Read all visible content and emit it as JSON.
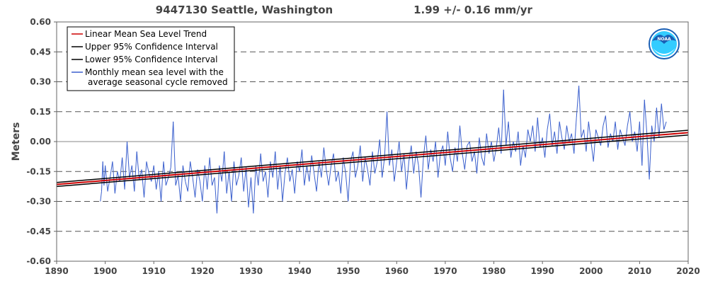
{
  "header": {
    "station": "9447130 Seattle, Washington",
    "trend": "1.99 +/-  0.16 mm/yr"
  },
  "logo_text": "NOAA",
  "colors": {
    "trend": "#cc0000",
    "ci": "#000000",
    "monthly": "#3a5fcd",
    "grid": "#555555",
    "zero": "#888888",
    "background": "#ffffff",
    "noaa_blue": "#1a5fb4",
    "noaa_sky": "#33ccff"
  },
  "chart_data": {
    "type": "line",
    "title": "9447130 Seattle, Washington",
    "subtitle": "1.99 +/-  0.16 mm/yr",
    "xlabel": "",
    "ylabel": "Meters",
    "xlim": [
      1890,
      2020
    ],
    "ylim": [
      -0.6,
      0.6
    ],
    "x_ticks": [
      1890,
      1900,
      1910,
      1920,
      1930,
      1940,
      1950,
      1960,
      1970,
      1980,
      1990,
      2000,
      2010,
      2020
    ],
    "y_ticks": [
      -0.6,
      -0.45,
      -0.3,
      -0.15,
      0.0,
      0.15,
      0.3,
      0.45,
      0.6
    ],
    "y_tick_labels": [
      "-0.60",
      "-0.45",
      "-0.30",
      "-0.15",
      "0.00",
      "0.15",
      "0.30",
      "0.45",
      "0.60"
    ],
    "grid": "horizontal dashed",
    "legend_position": "top-left",
    "legend": [
      {
        "label": "Linear Mean Sea Level Trend",
        "color": "#cc0000"
      },
      {
        "label": "Upper 95% Confidence Interval",
        "color": "#000000"
      },
      {
        "label": "Lower 95% Confidence Interval",
        "color": "#000000"
      },
      {
        "label": "Monthly mean sea level with the average seasonal cycle removed",
        "color": "#3a5fcd"
      }
    ],
    "trend_lines": [
      {
        "name": "Linear Mean Sea Level Trend",
        "x": [
          1890,
          2020
        ],
        "y": [
          -0.215,
          0.045
        ]
      },
      {
        "name": "Upper 95% Confidence Interval",
        "x": [
          1890,
          2020
        ],
        "y": [
          -0.205,
          0.057
        ]
      },
      {
        "name": "Lower 95% Confidence Interval",
        "x": [
          1890,
          2020
        ],
        "y": [
          -0.225,
          0.033
        ]
      }
    ],
    "monthly_series": {
      "name": "Monthly mean sea level with the average seasonal cycle removed",
      "x": [
        1899.0,
        1899.25,
        1899.5,
        1899.75,
        1900.0,
        1900.5,
        1901.0,
        1901.5,
        1902.0,
        1902.5,
        1903.0,
        1903.5,
        1904.0,
        1904.5,
        1905.0,
        1905.5,
        1906.0,
        1906.5,
        1907.0,
        1907.5,
        1908.0,
        1908.5,
        1909.0,
        1909.5,
        1910.0,
        1910.5,
        1911.0,
        1911.5,
        1912.0,
        1912.5,
        1913.0,
        1913.5,
        1914.0,
        1914.5,
        1915.0,
        1915.5,
        1916.0,
        1916.5,
        1917.0,
        1917.5,
        1918.0,
        1918.5,
        1919.0,
        1919.5,
        1920.0,
        1920.5,
        1921.0,
        1921.5,
        1922.0,
        1922.5,
        1923.0,
        1923.5,
        1924.0,
        1924.5,
        1925.0,
        1925.5,
        1926.0,
        1926.5,
        1927.0,
        1927.5,
        1928.0,
        1928.5,
        1929.0,
        1929.5,
        1930.0,
        1930.5,
        1931.0,
        1931.5,
        1932.0,
        1932.5,
        1933.0,
        1933.5,
        1934.0,
        1934.5,
        1935.0,
        1935.5,
        1936.0,
        1936.5,
        1937.0,
        1937.5,
        1938.0,
        1938.5,
        1939.0,
        1939.5,
        1940.0,
        1940.5,
        1941.0,
        1941.5,
        1942.0,
        1942.5,
        1943.0,
        1943.5,
        1944.0,
        1944.5,
        1945.0,
        1945.5,
        1946.0,
        1946.5,
        1947.0,
        1947.5,
        1948.0,
        1948.5,
        1949.0,
        1949.5,
        1950.0,
        1950.5,
        1951.0,
        1951.5,
        1952.0,
        1952.5,
        1953.0,
        1953.5,
        1954.0,
        1954.5,
        1955.0,
        1955.5,
        1956.0,
        1956.5,
        1957.0,
        1957.5,
        1958.0,
        1958.5,
        1959.0,
        1959.5,
        1960.0,
        1960.5,
        1961.0,
        1961.5,
        1962.0,
        1962.5,
        1963.0,
        1963.5,
        1964.0,
        1964.5,
        1965.0,
        1965.5,
        1966.0,
        1966.5,
        1967.0,
        1967.5,
        1968.0,
        1968.5,
        1969.0,
        1969.5,
        1970.0,
        1970.5,
        1971.0,
        1971.5,
        1972.0,
        1972.5,
        1973.0,
        1973.5,
        1974.0,
        1974.5,
        1975.0,
        1975.5,
        1976.0,
        1976.5,
        1977.0,
        1977.5,
        1978.0,
        1978.5,
        1979.0,
        1979.5,
        1980.0,
        1980.5,
        1981.0,
        1981.5,
        1982.0,
        1982.5,
        1983.0,
        1983.5,
        1984.0,
        1984.5,
        1985.0,
        1985.5,
        1986.0,
        1986.5,
        1987.0,
        1987.5,
        1988.0,
        1988.5,
        1989.0,
        1989.5,
        1990.0,
        1990.5,
        1991.0,
        1991.5,
        1992.0,
        1992.5,
        1993.0,
        1993.5,
        1994.0,
        1994.5,
        1995.0,
        1995.5,
        1996.0,
        1996.5,
        1997.0,
        1997.5,
        1998.0,
        1998.5,
        1999.0,
        1999.5,
        2000.0,
        2000.5,
        2001.0,
        2001.5,
        2002.0,
        2002.5,
        2003.0,
        2003.5,
        2004.0,
        2004.5,
        2005.0,
        2005.5,
        2006.0,
        2006.5,
        2007.0,
        2007.5,
        2008.0,
        2008.5,
        2009.0,
        2009.5,
        2010.0,
        2010.5,
        2011.0,
        2011.5,
        2012.0,
        2012.5,
        2013.0,
        2013.5,
        2014.0,
        2014.5,
        2015.0,
        2015.5
      ],
      "y": [
        -0.3,
        -0.25,
        -0.1,
        -0.22,
        -0.12,
        -0.25,
        -0.18,
        -0.1,
        -0.26,
        -0.15,
        -0.2,
        -0.08,
        -0.24,
        0.0,
        -0.18,
        -0.12,
        -0.25,
        -0.05,
        -0.19,
        -0.14,
        -0.28,
        -0.1,
        -0.16,
        -0.2,
        -0.12,
        -0.24,
        -0.15,
        -0.3,
        -0.1,
        -0.22,
        -0.18,
        -0.13,
        0.1,
        -0.22,
        -0.17,
        -0.3,
        -0.12,
        -0.2,
        -0.25,
        -0.1,
        -0.18,
        -0.28,
        -0.14,
        -0.2,
        -0.3,
        -0.12,
        -0.24,
        -0.08,
        -0.22,
        -0.18,
        -0.36,
        -0.12,
        -0.2,
        -0.05,
        -0.26,
        -0.15,
        -0.3,
        -0.1,
        -0.22,
        -0.17,
        -0.08,
        -0.25,
        -0.13,
        -0.33,
        -0.18,
        -0.36,
        -0.12,
        -0.22,
        -0.06,
        -0.2,
        -0.15,
        -0.28,
        -0.1,
        -0.18,
        -0.05,
        -0.24,
        -0.12,
        -0.3,
        -0.16,
        -0.08,
        -0.2,
        -0.14,
        -0.26,
        -0.1,
        -0.15,
        -0.04,
        -0.22,
        -0.12,
        -0.2,
        -0.07,
        -0.16,
        -0.25,
        -0.1,
        -0.18,
        -0.03,
        -0.14,
        -0.22,
        -0.12,
        -0.06,
        -0.2,
        -0.15,
        -0.26,
        -0.08,
        -0.16,
        -0.3,
        -0.1,
        -0.05,
        -0.18,
        -0.12,
        -0.02,
        -0.2,
        -0.08,
        -0.14,
        -0.22,
        -0.05,
        -0.16,
        -0.1,
        0.01,
        -0.18,
        -0.08,
        0.15,
        -0.12,
        -0.04,
        -0.2,
        -0.1,
        0.0,
        -0.15,
        -0.06,
        -0.24,
        -0.1,
        -0.02,
        -0.16,
        -0.05,
        -0.12,
        -0.28,
        -0.08,
        0.03,
        -0.14,
        -0.04,
        -0.1,
        0.0,
        -0.18,
        -0.06,
        -0.02,
        -0.12,
        0.05,
        -0.08,
        -0.15,
        -0.03,
        -0.1,
        0.08,
        -0.06,
        -0.14,
        -0.02,
        0.0,
        -0.1,
        -0.05,
        -0.16,
        0.02,
        -0.08,
        -0.12,
        0.04,
        -0.06,
        0.0,
        -0.1,
        -0.03,
        0.07,
        -0.06,
        0.26,
        -0.02,
        0.1,
        -0.08,
        0.0,
        -0.05,
        0.05,
        -0.12,
        -0.02,
        -0.08,
        0.06,
        0.0,
        0.08,
        -0.05,
        0.12,
        -0.03,
        0.02,
        -0.08,
        0.06,
        0.14,
        -0.02,
        0.05,
        -0.06,
        0.1,
        0.02,
        -0.04,
        0.08,
        0.0,
        0.04,
        -0.06,
        0.12,
        0.28,
        0.02,
        0.06,
        -0.05,
        0.1,
        0.0,
        -0.1,
        0.06,
        0.02,
        -0.02,
        0.08,
        0.13,
        -0.03,
        0.04,
        0.0,
        0.1,
        -0.04,
        0.06,
        0.02,
        -0.02,
        0.08,
        0.15,
        0.0,
        0.05,
        -0.05,
        0.1,
        -0.12,
        0.21,
        0.04,
        -0.19,
        0.08,
        0.0,
        0.17,
        0.02,
        0.19,
        0.06,
        0.1
      ]
    }
  }
}
